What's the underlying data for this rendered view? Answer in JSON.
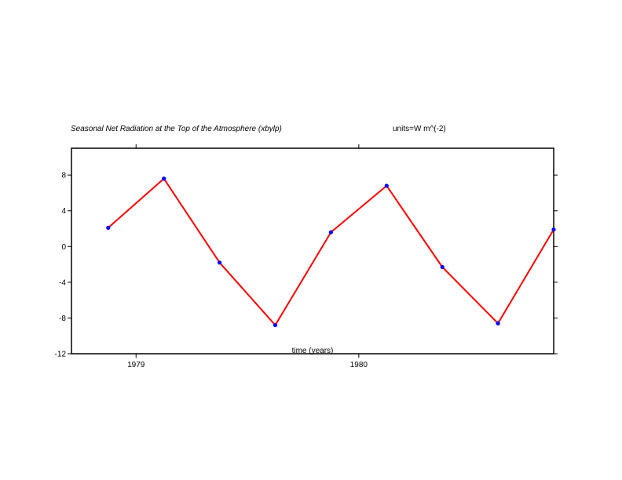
{
  "chart_data": {
    "type": "line",
    "title": "Seasonal Net Radiation at the Top of the Atmosphere (xbylp)",
    "units_label": "units=W m^(-2)",
    "xlabel": "time (years)",
    "ylabel": "",
    "x_ticks": [
      {
        "value": 1979,
        "label": "1979"
      },
      {
        "value": 1980,
        "label": "1980"
      }
    ],
    "y_ticks": [
      {
        "value": -12,
        "label": "-12"
      },
      {
        "value": -8,
        "label": "-8"
      },
      {
        "value": -4,
        "label": "-4"
      },
      {
        "value": 0,
        "label": "0"
      },
      {
        "value": 4,
        "label": "4"
      },
      {
        "value": 8,
        "label": "8"
      }
    ],
    "xlim": [
      1978.71,
      1980.875
    ],
    "ylim": [
      -12,
      11
    ],
    "grid": false,
    "series": [
      {
        "x": [
          1978.875,
          1979.125,
          1979.375,
          1979.625,
          1979.875,
          1980.125,
          1980.375,
          1980.625,
          1980.875
        ],
        "values": [
          2.1,
          7.6,
          -1.8,
          -8.8,
          1.6,
          6.8,
          -2.3,
          -8.6,
          1.9
        ],
        "line_color": "#ff0000",
        "marker_color": "#0000ff"
      }
    ]
  }
}
